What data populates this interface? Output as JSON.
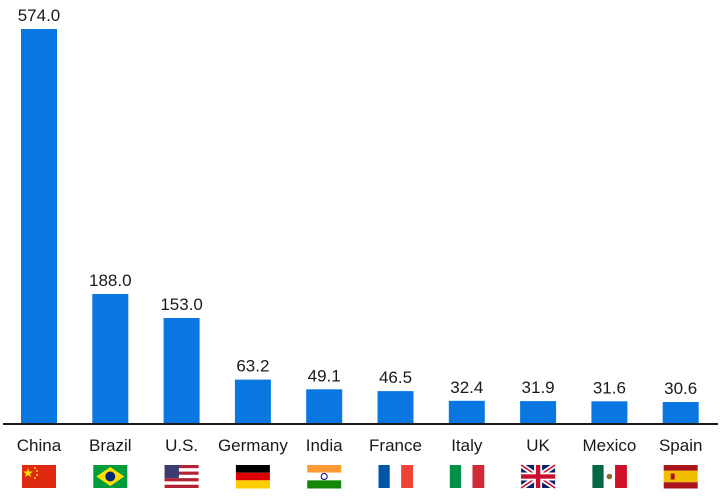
{
  "chart_data": {
    "type": "bar",
    "title": "",
    "xlabel": "",
    "ylabel": "",
    "categories": [
      "China",
      "Brazil",
      "U.S.",
      "Germany",
      "India",
      "France",
      "Italy",
      "UK",
      "Mexico",
      "Spain"
    ],
    "values": [
      574.0,
      188.0,
      153.0,
      63.2,
      49.1,
      46.5,
      32.4,
      31.9,
      31.6,
      30.6
    ],
    "value_labels": [
      "574.0",
      "188.0",
      "153.0",
      "63.2",
      "49.1",
      "46.5",
      "32.4",
      "31.9",
      "31.6",
      "30.6"
    ],
    "flags": [
      "china-flag-icon",
      "brazil-flag-icon",
      "us-flag-icon",
      "germany-flag-icon",
      "india-flag-icon",
      "france-flag-icon",
      "italy-flag-icon",
      "uk-flag-icon",
      "mexico-flag-icon",
      "spain-flag-icon"
    ],
    "ylim": [
      0,
      574
    ],
    "grid": false,
    "bar_color": "#0a77e0",
    "axis_color": "#1a1a1a"
  }
}
